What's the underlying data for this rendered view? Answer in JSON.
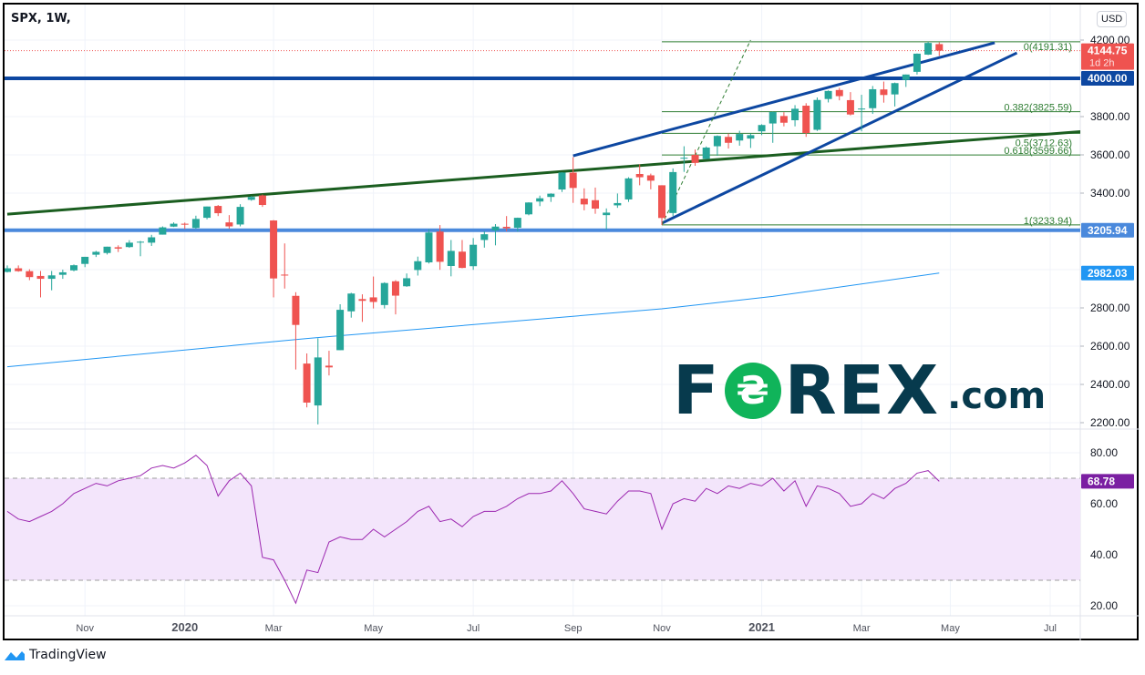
{
  "header": {
    "title": "SPX, 1W,",
    "currency": "USD"
  },
  "footer": {
    "brand": "TradingView"
  },
  "watermark": {
    "text": "FOREX.com"
  },
  "colors": {
    "up": "#26a69a",
    "down": "#ef5350",
    "trend_green": "#1b5e20",
    "channel_blue": "#0d47a1",
    "level_4000": "#0d47a1",
    "level_3205": "#4a89dc",
    "ma": "#2196f3",
    "rsi": "#9c27b0",
    "rsi_band": "#f3e5fb",
    "fib": "#2e7d32",
    "current_price": "#ef5350"
  },
  "chart_data": {
    "type": "candlestick",
    "symbol": "SPX",
    "interval": "1W",
    "start_week": "2019-09-09",
    "ylim": [
      2150,
      4280
    ],
    "yticks": [
      "4200.00",
      "3800.00",
      "3600.00",
      "3400.00",
      "2800.00",
      "2600.00",
      "2400.00",
      "2200.00"
    ],
    "xticks": [
      {
        "label": "Nov",
        "date": "2019-10-28"
      },
      {
        "label": "2020",
        "date": "2019-12-30",
        "bold": true
      },
      {
        "label": "Mar",
        "date": "2020-02-24"
      },
      {
        "label": "May",
        "date": "2020-04-27"
      },
      {
        "label": "Jul",
        "date": "2020-06-29"
      },
      {
        "label": "Sep",
        "date": "2020-08-31"
      },
      {
        "label": "Nov",
        "date": "2020-10-26"
      },
      {
        "label": "2021",
        "date": "2020-12-28",
        "bold": true
      },
      {
        "label": "Mar",
        "date": "2021-03-01"
      },
      {
        "label": "May",
        "date": "2021-04-26"
      },
      {
        "label": "Jul",
        "date": "2021-06-28"
      }
    ],
    "ohlc": [
      [
        2988,
        3022,
        2985,
        3007
      ],
      [
        3007,
        3022,
        2989,
        2992
      ],
      [
        2992,
        3002,
        2945,
        2961
      ],
      [
        2967,
        2993,
        2855,
        2952
      ],
      [
        2952,
        2993,
        2892,
        2970
      ],
      [
        2973,
        3000,
        2952,
        2986
      ],
      [
        2996,
        3027,
        2991,
        3023
      ],
      [
        3030,
        3067,
        3013,
        3067
      ],
      [
        3078,
        3098,
        3066,
        3093
      ],
      [
        3087,
        3120,
        3079,
        3120
      ],
      [
        3117,
        3127,
        3092,
        3110
      ],
      [
        3118,
        3154,
        3114,
        3141
      ],
      [
        3144,
        3150,
        3070,
        3146
      ],
      [
        3141,
        3182,
        3124,
        3169
      ],
      [
        3183,
        3226,
        3183,
        3221
      ],
      [
        3225,
        3247,
        3223,
        3240
      ],
      [
        3240,
        3246,
        3212,
        3235
      ],
      [
        3218,
        3282,
        3214,
        3265
      ],
      [
        3271,
        3330,
        3263,
        3330
      ],
      [
        3333,
        3338,
        3280,
        3295
      ],
      [
        3247,
        3285,
        3214,
        3226
      ],
      [
        3236,
        3342,
        3226,
        3328
      ],
      [
        3365,
        3385,
        3360,
        3380
      ],
      [
        3388,
        3393,
        3328,
        3338
      ],
      [
        3257,
        3259,
        2855,
        2954
      ],
      [
        2974,
        3137,
        2901,
        2972
      ],
      [
        2863,
        2882,
        2478,
        2711
      ],
      [
        2509,
        2562,
        2280,
        2305
      ],
      [
        2290,
        2641,
        2191,
        2541
      ],
      [
        2498,
        2576,
        2447,
        2489
      ],
      [
        2579,
        2819,
        2579,
        2790
      ],
      [
        2782,
        2879,
        2749,
        2875
      ],
      [
        2846,
        2871,
        2727,
        2837
      ],
      [
        2855,
        2964,
        2797,
        2831
      ],
      [
        2815,
        2934,
        2797,
        2930
      ],
      [
        2939,
        2945,
        2766,
        2864
      ],
      [
        2913,
        2980,
        2910,
        2955
      ],
      [
        2998,
        3068,
        2969,
        3044
      ],
      [
        3038,
        3211,
        3032,
        3194
      ],
      [
        3199,
        3233,
        2999,
        3041
      ],
      [
        3019,
        3155,
        2965,
        3098
      ],
      [
        3094,
        3155,
        3007,
        3009
      ],
      [
        3018,
        3165,
        2999,
        3130
      ],
      [
        3155,
        3200,
        3115,
        3185
      ],
      [
        3205,
        3238,
        3127,
        3225
      ],
      [
        3224,
        3280,
        3200,
        3216
      ],
      [
        3219,
        3272,
        3199,
        3271
      ],
      [
        3289,
        3352,
        3284,
        3351
      ],
      [
        3356,
        3387,
        3332,
        3373
      ],
      [
        3380,
        3399,
        3354,
        3397
      ],
      [
        3419,
        3509,
        3406,
        3508
      ],
      [
        3507,
        3588,
        3349,
        3427
      ],
      [
        3371,
        3425,
        3310,
        3341
      ],
      [
        3363,
        3429,
        3292,
        3319
      ],
      [
        3285,
        3320,
        3209,
        3298
      ],
      [
        3336,
        3398,
        3323,
        3348
      ],
      [
        3367,
        3483,
        3354,
        3477
      ],
      [
        3500,
        3550,
        3441,
        3483
      ],
      [
        3493,
        3502,
        3420,
        3465
      ],
      [
        3441,
        3441,
        3233,
        3270
      ],
      [
        3296,
        3529,
        3280,
        3510
      ],
      [
        3584,
        3645,
        3511,
        3585
      ],
      [
        3600,
        3628,
        3543,
        3558
      ],
      [
        3579,
        3644,
        3577,
        3638
      ],
      [
        3645,
        3702,
        3595,
        3699
      ],
      [
        3694,
        3712,
        3633,
        3663
      ],
      [
        3675,
        3726,
        3648,
        3709
      ],
      [
        3685,
        3712,
        3636,
        3703
      ],
      [
        3723,
        3760,
        3703,
        3756
      ],
      [
        3764,
        3826,
        3663,
        3824
      ],
      [
        3803,
        3823,
        3749,
        3768
      ],
      [
        3781,
        3860,
        3749,
        3841
      ],
      [
        3857,
        3870,
        3694,
        3714
      ],
      [
        3731,
        3900,
        3725,
        3887
      ],
      [
        3892,
        3937,
        3874,
        3934
      ],
      [
        3939,
        3950,
        3885,
        3907
      ],
      [
        3886,
        3928,
        3806,
        3811
      ],
      [
        3842,
        3914,
        3723,
        3842
      ],
      [
        3844,
        3960,
        3814,
        3943
      ],
      [
        3942,
        3983,
        3873,
        3913
      ],
      [
        3916,
        3978,
        3853,
        3975
      ],
      [
        3992,
        4020,
        3955,
        4020
      ],
      [
        4034,
        4130,
        4020,
        4129
      ],
      [
        4124,
        4191,
        4122,
        4185
      ],
      [
        4179,
        4188,
        4118,
        4144.75
      ]
    ],
    "moving_average": [
      [
        "2019-09-09",
        2492
      ],
      [
        "2020-03-16",
        2640
      ],
      [
        "2020-10-26",
        2795
      ],
      [
        "2021-01-04",
        2860
      ],
      [
        "2021-04-19",
        2982.03
      ]
    ],
    "current_price": {
      "value": "4144.75",
      "countdown": "1d 2h"
    },
    "horizontal_levels": [
      {
        "value": 4000,
        "label": "4000.00",
        "color_key": "level_4000"
      },
      {
        "value": 3205.94,
        "label": "3205.94",
        "color_key": "level_3205"
      }
    ],
    "ma_label": "2982.03",
    "trendlines": [
      {
        "name": "long-green-trendline",
        "from": [
          "2019-09-09",
          3290
        ],
        "to": [
          "2021-08-23",
          3745
        ],
        "color_key": "trend_green"
      },
      {
        "name": "channel-upper-line",
        "from": [
          "2020-08-31",
          3595
        ],
        "to": [
          "2021-05-24",
          4186
        ],
        "color_key": "channel_blue"
      },
      {
        "name": "channel-lower-line",
        "from": [
          "2020-10-26",
          3243
        ],
        "to": [
          "2021-06-07",
          4133
        ],
        "color_key": "channel_blue"
      },
      {
        "name": "fib-dashed-line",
        "from": [
          "2020-10-26",
          3233.94
        ],
        "to": [
          "2020-12-21",
          4200
        ],
        "color_key": "fib",
        "dashed": true
      }
    ],
    "fibonacci": {
      "from": "2020-10-26",
      "levels": [
        {
          "value": 4191.31,
          "label": "0(4191.31)"
        },
        {
          "value": 3825.59,
          "label": "0.382(3825.59)"
        },
        {
          "value": 3712.63,
          "label": "0.5(3712.63)"
        },
        {
          "value": 3599.66,
          "label": "0.618(3599.66)"
        },
        {
          "value": 3233.94,
          "label": "1(3233.94)"
        }
      ]
    },
    "rsi": {
      "ylim": [
        12,
        88
      ],
      "yticks": [
        "80.00",
        "60.00",
        "40.00",
        "20.00"
      ],
      "band": [
        30,
        70
      ],
      "last_label": "68.78",
      "values": [
        57,
        54,
        53,
        55,
        57,
        60,
        64,
        66,
        68,
        67,
        69,
        70,
        71,
        74,
        75,
        74,
        76,
        79,
        75,
        63,
        69,
        72,
        67,
        39,
        38,
        30,
        21,
        34,
        33,
        45,
        47,
        46,
        46,
        50,
        47,
        50,
        53,
        57,
        59,
        53,
        54,
        51,
        55,
        57,
        57,
        59,
        62,
        64,
        64,
        65,
        69,
        64,
        58,
        57,
        56,
        61,
        65,
        65,
        64,
        50,
        60,
        62,
        61,
        66,
        64,
        67,
        66,
        68,
        67,
        70,
        65,
        69,
        59,
        67,
        66,
        64,
        59,
        60,
        64,
        62,
        66,
        68,
        72,
        73,
        68.78
      ]
    }
  }
}
